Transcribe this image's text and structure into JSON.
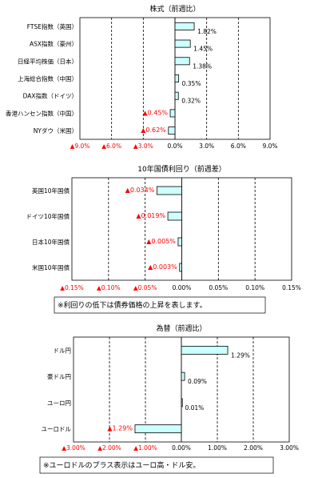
{
  "colors": {
    "bar_fill": "#ccffff",
    "negative_text": "#ff0000",
    "text": "#000000"
  },
  "chart_data": [
    {
      "type": "bar",
      "orientation": "horizontal",
      "title": "株式（前週比）",
      "categories": [
        "FTSE指数（英国）",
        "ASX指数（豪州）",
        "日経平均株価（日本）",
        "上海総合指数（中国）",
        "DAX指数（ドイツ）",
        "香港ハンセン指数（中国）",
        "NYダウ（米国）"
      ],
      "values": [
        1.82,
        1.45,
        1.38,
        0.35,
        0.32,
        -0.45,
        -0.62
      ],
      "value_labels": [
        "1.82%",
        "1.45%",
        "1.38%",
        "0.35%",
        "0.32%",
        "▲0.45%",
        "▲0.62%"
      ],
      "xlim": [
        -9,
        9
      ],
      "ticks": [
        -9,
        -6,
        -3,
        0,
        3,
        6,
        9
      ],
      "tick_labels": [
        "▲9.0%",
        "▲6.0%",
        "▲3.0%",
        "0.0%",
        "3.0%",
        "6.0%",
        "9.0%"
      ],
      "grid": true,
      "note": ""
    },
    {
      "type": "bar",
      "orientation": "horizontal",
      "title": "10年国債利回り（前週差）",
      "categories": [
        "英国10年国債",
        "ドイツ10年国債",
        "日本10年国債",
        "米国10年国債"
      ],
      "values": [
        -0.034,
        -0.019,
        -0.005,
        -0.003
      ],
      "value_labels": [
        "▲0.034%",
        "▲0.019%",
        "▲0.005%",
        "▲0.003%"
      ],
      "xlim": [
        -0.15,
        0.15
      ],
      "ticks": [
        -0.15,
        -0.1,
        -0.05,
        0,
        0.05,
        0.1,
        0.15
      ],
      "tick_labels": [
        "▲0.15%",
        "▲0.10%",
        "▲0.05%",
        "0.00%",
        "0.05%",
        "0.10%",
        "0.15%"
      ],
      "grid": true,
      "note": "※利回りの低下は債券価格の上昇を表します。"
    },
    {
      "type": "bar",
      "orientation": "horizontal",
      "title": "為替（前週比）",
      "categories": [
        "ドル円",
        "豪ドル円",
        "ユーロ円",
        "ユーロドル"
      ],
      "values": [
        1.29,
        0.09,
        0.01,
        -1.29
      ],
      "value_labels": [
        "1.29%",
        "0.09%",
        "0.01%",
        "▲1.29%"
      ],
      "xlim": [
        -3,
        3
      ],
      "ticks": [
        -3,
        -2,
        -1,
        0,
        1,
        2,
        3
      ],
      "tick_labels": [
        "▲3.00%",
        "▲2.00%",
        "▲1.00%",
        "0.00%",
        "1.00%",
        "2.00%",
        "3.00%"
      ],
      "grid": true,
      "note": "※ユーロドルのプラス表示はユーロ高・ドル安。"
    }
  ]
}
